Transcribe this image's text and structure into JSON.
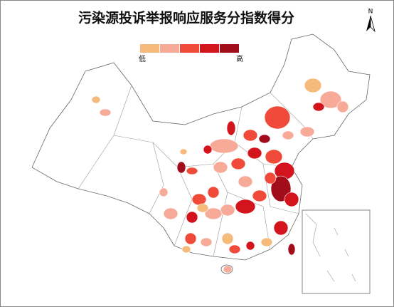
{
  "title": "污染源投诉举报响应服务分指数得分",
  "legend": {
    "colors": [
      "#f5ba7c",
      "#f7aa98",
      "#ef4a3a",
      "#d4141c",
      "#a10d1b"
    ],
    "low_label": "低",
    "high_label": "高"
  },
  "north": "N"
}
